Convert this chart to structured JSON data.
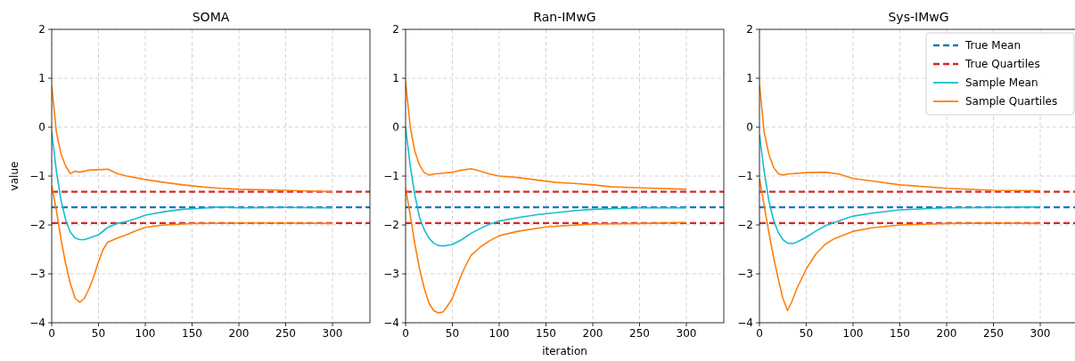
{
  "chart_data": [
    {
      "type": "line",
      "title": "SOMA",
      "ylabel": "value",
      "xlim": [
        0,
        340
      ],
      "ylim": [
        -4,
        2
      ],
      "xticks": [
        0,
        50,
        100,
        150,
        200,
        250,
        300
      ],
      "yticks": [
        -4,
        -3,
        -2,
        -1,
        0,
        1,
        2
      ],
      "grid": true,
      "series": [
        {
          "color": "#1f77b4",
          "line_style": "dashed",
          "x": [
            0,
            340
          ],
          "values": [
            -1.64,
            -1.64
          ]
        },
        {
          "color": "#d62728",
          "line_style": "dashed",
          "x": [
            0,
            340
          ],
          "values": [
            -1.32,
            -1.32
          ]
        },
        {
          "color": "#d62728",
          "line_style": "dashed",
          "x": [
            0,
            340
          ],
          "values": [
            -1.96,
            -1.96
          ]
        },
        {
          "color": "#17becf",
          "x": [
            0,
            5,
            10,
            15,
            20,
            25,
            30,
            35,
            40,
            50,
            60,
            70,
            80,
            90,
            100,
            120,
            140,
            160,
            180,
            200,
            250,
            300
          ],
          "values": [
            -0.1,
            -0.9,
            -1.5,
            -1.9,
            -2.15,
            -2.27,
            -2.3,
            -2.3,
            -2.27,
            -2.2,
            -2.05,
            -1.97,
            -1.93,
            -1.87,
            -1.8,
            -1.73,
            -1.68,
            -1.66,
            -1.63,
            -1.65,
            -1.64,
            -1.65
          ]
        },
        {
          "color": "#ff7f0e",
          "x": [
            0,
            5,
            10,
            15,
            20,
            25,
            30,
            40,
            50,
            60,
            70,
            80,
            100,
            120,
            140,
            160,
            180,
            200,
            250,
            300
          ],
          "values": [
            0.84,
            -0.1,
            -0.55,
            -0.8,
            -0.95,
            -0.9,
            -0.92,
            -0.88,
            -0.87,
            -0.86,
            -0.95,
            -1.0,
            -1.07,
            -1.13,
            -1.18,
            -1.22,
            -1.25,
            -1.27,
            -1.29,
            -1.32
          ]
        },
        {
          "color": "#ff7f0e",
          "x": [
            0,
            5,
            10,
            15,
            20,
            25,
            30,
            35,
            40,
            45,
            50,
            55,
            60,
            70,
            80,
            90,
            100,
            120,
            150,
            200,
            250,
            300
          ],
          "values": [
            -1.2,
            -1.7,
            -2.3,
            -2.8,
            -3.2,
            -3.5,
            -3.58,
            -3.5,
            -3.3,
            -3.05,
            -2.75,
            -2.5,
            -2.35,
            -2.27,
            -2.2,
            -2.12,
            -2.05,
            -2.0,
            -1.97,
            -1.96,
            -1.96,
            -1.97
          ]
        }
      ]
    },
    {
      "type": "line",
      "title": "Ran-IMwG",
      "xlabel": "iteration",
      "xlim": [
        0,
        340
      ],
      "ylim": [
        -4,
        2
      ],
      "xticks": [
        0,
        50,
        100,
        150,
        200,
        250,
        300
      ],
      "yticks": [
        -4,
        -3,
        -2,
        -1,
        0,
        1,
        2
      ],
      "grid": true,
      "series": [
        {
          "color": "#1f77b4",
          "line_style": "dashed",
          "x": [
            0,
            340
          ],
          "values": [
            -1.64,
            -1.64
          ]
        },
        {
          "color": "#d62728",
          "line_style": "dashed",
          "x": [
            0,
            340
          ],
          "values": [
            -1.32,
            -1.32
          ]
        },
        {
          "color": "#d62728",
          "line_style": "dashed",
          "x": [
            0,
            340
          ],
          "values": [
            -1.96,
            -1.96
          ]
        },
        {
          "color": "#17becf",
          "x": [
            0,
            5,
            10,
            15,
            20,
            25,
            30,
            35,
            40,
            50,
            60,
            70,
            80,
            90,
            100,
            120,
            140,
            160,
            180,
            200,
            250,
            300
          ],
          "values": [
            0.0,
            -0.8,
            -1.4,
            -1.85,
            -2.1,
            -2.27,
            -2.37,
            -2.42,
            -2.43,
            -2.4,
            -2.3,
            -2.17,
            -2.07,
            -1.98,
            -1.92,
            -1.85,
            -1.79,
            -1.75,
            -1.71,
            -1.68,
            -1.65,
            -1.65
          ]
        },
        {
          "color": "#ff7f0e",
          "x": [
            0,
            5,
            10,
            15,
            20,
            25,
            30,
            40,
            50,
            60,
            70,
            80,
            90,
            100,
            120,
            140,
            160,
            180,
            200,
            220,
            250,
            300
          ],
          "values": [
            0.93,
            0.0,
            -0.5,
            -0.78,
            -0.93,
            -0.98,
            -0.96,
            -0.94,
            -0.92,
            -0.88,
            -0.85,
            -0.9,
            -0.96,
            -1.0,
            -1.03,
            -1.08,
            -1.13,
            -1.15,
            -1.18,
            -1.22,
            -1.24,
            -1.27
          ]
        },
        {
          "color": "#ff7f0e",
          "x": [
            0,
            5,
            10,
            15,
            20,
            25,
            30,
            35,
            40,
            45,
            50,
            55,
            60,
            65,
            70,
            80,
            90,
            100,
            120,
            150,
            200,
            250,
            300
          ],
          "values": [
            -1.25,
            -1.8,
            -2.4,
            -2.9,
            -3.3,
            -3.6,
            -3.75,
            -3.8,
            -3.78,
            -3.65,
            -3.5,
            -3.25,
            -3.0,
            -2.8,
            -2.62,
            -2.45,
            -2.32,
            -2.22,
            -2.13,
            -2.04,
            -1.98,
            -1.97,
            -1.95
          ]
        }
      ]
    },
    {
      "type": "line",
      "title": "Sys-IMwG",
      "xlim": [
        0,
        340
      ],
      "ylim": [
        -4,
        2
      ],
      "xticks": [
        0,
        50,
        100,
        150,
        200,
        250,
        300
      ],
      "yticks": [
        -4,
        -3,
        -2,
        -1,
        0,
        1,
        2
      ],
      "grid": true,
      "legend": "top right",
      "series": [
        {
          "name": "True Mean",
          "color": "#1f77b4",
          "line_style": "dashed",
          "x": [
            0,
            340
          ],
          "values": [
            -1.64,
            -1.64
          ]
        },
        {
          "name": "True Quartiles",
          "color": "#d62728",
          "line_style": "dashed",
          "x": [
            0,
            340
          ],
          "values": [
            -1.32,
            -1.32
          ]
        },
        {
          "color": "#d62728",
          "line_style": "dashed",
          "x": [
            0,
            340
          ],
          "values": [
            -1.96,
            -1.96
          ]
        },
        {
          "name": "Sample Mean",
          "color": "#17becf",
          "x": [
            0,
            5,
            10,
            15,
            20,
            25,
            30,
            35,
            40,
            50,
            60,
            70,
            80,
            90,
            100,
            120,
            150,
            200,
            250,
            300
          ],
          "values": [
            -0.15,
            -0.9,
            -1.5,
            -1.9,
            -2.15,
            -2.3,
            -2.37,
            -2.38,
            -2.35,
            -2.25,
            -2.13,
            -2.02,
            -1.95,
            -1.88,
            -1.82,
            -1.76,
            -1.69,
            -1.65,
            -1.64,
            -1.63
          ]
        },
        {
          "name": "Sample Quartiles",
          "color": "#ff7f0e",
          "x": [
            0,
            5,
            10,
            15,
            20,
            25,
            30,
            50,
            70,
            85,
            100,
            120,
            150,
            200,
            250,
            300
          ],
          "values": [
            0.88,
            -0.1,
            -0.55,
            -0.82,
            -0.95,
            -0.98,
            -0.96,
            -0.93,
            -0.92,
            -0.96,
            -1.05,
            -1.1,
            -1.18,
            -1.25,
            -1.29,
            -1.3
          ]
        },
        {
          "color": "#ff7f0e",
          "x": [
            0,
            5,
            10,
            15,
            20,
            25,
            30,
            35,
            40,
            45,
            50,
            60,
            70,
            80,
            100,
            120,
            150,
            200,
            250,
            300
          ],
          "values": [
            -1.05,
            -1.6,
            -2.15,
            -2.65,
            -3.1,
            -3.5,
            -3.75,
            -3.55,
            -3.3,
            -3.1,
            -2.9,
            -2.6,
            -2.4,
            -2.28,
            -2.13,
            -2.06,
            -2.0,
            -1.97,
            -1.96,
            -1.97
          ]
        }
      ]
    }
  ]
}
